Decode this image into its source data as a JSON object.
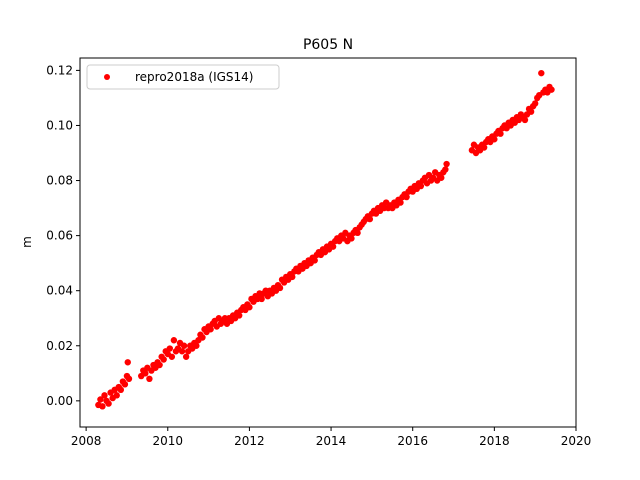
{
  "chart_data": {
    "type": "scatter",
    "title": "P605 N",
    "xlabel": "",
    "ylabel": "m",
    "xlim": [
      2007.85,
      2020.0
    ],
    "ylim": [
      -0.0095,
      0.1245
    ],
    "xticks": [
      2008,
      2010,
      2012,
      2014,
      2016,
      2018,
      2020
    ],
    "xtick_labels": [
      "2008",
      "2010",
      "2012",
      "2014",
      "2016",
      "2018",
      "2020"
    ],
    "yticks": [
      0.0,
      0.02,
      0.04,
      0.06,
      0.08,
      0.1,
      0.12
    ],
    "ytick_labels": [
      "0.00",
      "0.02",
      "0.04",
      "0.06",
      "0.08",
      "0.10",
      "0.12"
    ],
    "grid": false,
    "legend_position": "top-left",
    "series": [
      {
        "name": "repro2018a (IGS14)",
        "color": "#ff0000",
        "marker": "circle",
        "points": [
          [
            2008.3,
            -0.0015
          ],
          [
            2008.35,
            0.0005
          ],
          [
            2008.4,
            -0.002
          ],
          [
            2008.45,
            0.002
          ],
          [
            2008.5,
            0.0
          ],
          [
            2008.55,
            -0.001
          ],
          [
            2008.6,
            0.003
          ],
          [
            2008.65,
            0.001
          ],
          [
            2008.7,
            0.004
          ],
          [
            2008.75,
            0.002
          ],
          [
            2008.8,
            0.005
          ],
          [
            2008.85,
            0.004
          ],
          [
            2008.9,
            0.007
          ],
          [
            2008.95,
            0.006
          ],
          [
            2009.0,
            0.009
          ],
          [
            2009.02,
            0.014
          ],
          [
            2009.05,
            0.008
          ],
          [
            2009.35,
            0.009
          ],
          [
            2009.4,
            0.011
          ],
          [
            2009.45,
            0.01
          ],
          [
            2009.5,
            0.012
          ],
          [
            2009.55,
            0.008
          ],
          [
            2009.6,
            0.011
          ],
          [
            2009.65,
            0.013
          ],
          [
            2009.7,
            0.012
          ],
          [
            2009.75,
            0.014
          ],
          [
            2009.8,
            0.013
          ],
          [
            2009.85,
            0.016
          ],
          [
            2009.9,
            0.015
          ],
          [
            2009.95,
            0.018
          ],
          [
            2010.0,
            0.017
          ],
          [
            2010.05,
            0.019
          ],
          [
            2010.1,
            0.016
          ],
          [
            2010.15,
            0.022
          ],
          [
            2010.2,
            0.018
          ],
          [
            2010.25,
            0.019
          ],
          [
            2010.3,
            0.021
          ],
          [
            2010.35,
            0.018
          ],
          [
            2010.4,
            0.02
          ],
          [
            2010.45,
            0.016
          ],
          [
            2010.5,
            0.018
          ],
          [
            2010.55,
            0.02
          ],
          [
            2010.6,
            0.019
          ],
          [
            2010.65,
            0.021
          ],
          [
            2010.7,
            0.02
          ],
          [
            2010.75,
            0.022
          ],
          [
            2010.8,
            0.024
          ],
          [
            2010.85,
            0.023
          ],
          [
            2010.9,
            0.026
          ],
          [
            2010.95,
            0.025
          ],
          [
            2011.0,
            0.027
          ],
          [
            2011.05,
            0.026
          ],
          [
            2011.1,
            0.028
          ],
          [
            2011.15,
            0.029
          ],
          [
            2011.2,
            0.027
          ],
          [
            2011.25,
            0.03
          ],
          [
            2011.3,
            0.028
          ],
          [
            2011.35,
            0.029
          ],
          [
            2011.4,
            0.03
          ],
          [
            2011.45,
            0.028
          ],
          [
            2011.5,
            0.03
          ],
          [
            2011.55,
            0.029
          ],
          [
            2011.6,
            0.031
          ],
          [
            2011.65,
            0.03
          ],
          [
            2011.7,
            0.032
          ],
          [
            2011.75,
            0.031
          ],
          [
            2011.8,
            0.033
          ],
          [
            2011.85,
            0.034
          ],
          [
            2011.9,
            0.033
          ],
          [
            2011.95,
            0.035
          ],
          [
            2012.0,
            0.034
          ],
          [
            2012.05,
            0.037
          ],
          [
            2012.1,
            0.036
          ],
          [
            2012.15,
            0.038
          ],
          [
            2012.2,
            0.037
          ],
          [
            2012.25,
            0.039
          ],
          [
            2012.3,
            0.037
          ],
          [
            2012.35,
            0.039
          ],
          [
            2012.4,
            0.04
          ],
          [
            2012.45,
            0.038
          ],
          [
            2012.5,
            0.04
          ],
          [
            2012.55,
            0.039
          ],
          [
            2012.6,
            0.041
          ],
          [
            2012.65,
            0.04
          ],
          [
            2012.7,
            0.042
          ],
          [
            2012.75,
            0.041
          ],
          [
            2012.8,
            0.044
          ],
          [
            2012.85,
            0.043
          ],
          [
            2012.9,
            0.045
          ],
          [
            2012.95,
            0.044
          ],
          [
            2013.0,
            0.046
          ],
          [
            2013.05,
            0.045
          ],
          [
            2013.1,
            0.047
          ],
          [
            2013.15,
            0.048
          ],
          [
            2013.2,
            0.047
          ],
          [
            2013.25,
            0.049
          ],
          [
            2013.3,
            0.048
          ],
          [
            2013.35,
            0.05
          ],
          [
            2013.4,
            0.049
          ],
          [
            2013.45,
            0.051
          ],
          [
            2013.5,
            0.05
          ],
          [
            2013.55,
            0.052
          ],
          [
            2013.6,
            0.051
          ],
          [
            2013.65,
            0.053
          ],
          [
            2013.7,
            0.054
          ],
          [
            2013.75,
            0.053
          ],
          [
            2013.8,
            0.055
          ],
          [
            2013.85,
            0.054
          ],
          [
            2013.9,
            0.056
          ],
          [
            2013.95,
            0.055
          ],
          [
            2014.0,
            0.057
          ],
          [
            2014.05,
            0.056
          ],
          [
            2014.1,
            0.058
          ],
          [
            2014.15,
            0.059
          ],
          [
            2014.2,
            0.058
          ],
          [
            2014.25,
            0.06
          ],
          [
            2014.3,
            0.059
          ],
          [
            2014.35,
            0.061
          ],
          [
            2014.4,
            0.058
          ],
          [
            2014.45,
            0.06
          ],
          [
            2014.5,
            0.059
          ],
          [
            2014.55,
            0.061
          ],
          [
            2014.6,
            0.062
          ],
          [
            2014.65,
            0.061
          ],
          [
            2014.7,
            0.063
          ],
          [
            2014.75,
            0.064
          ],
          [
            2014.8,
            0.065
          ],
          [
            2014.85,
            0.066
          ],
          [
            2014.9,
            0.067
          ],
          [
            2014.95,
            0.066
          ],
          [
            2015.0,
            0.068
          ],
          [
            2015.05,
            0.069
          ],
          [
            2015.1,
            0.068
          ],
          [
            2015.15,
            0.07
          ],
          [
            2015.2,
            0.069
          ],
          [
            2015.25,
            0.071
          ],
          [
            2015.3,
            0.07
          ],
          [
            2015.35,
            0.072
          ],
          [
            2015.4,
            0.07
          ],
          [
            2015.45,
            0.071
          ],
          [
            2015.5,
            0.07
          ],
          [
            2015.55,
            0.072
          ],
          [
            2015.6,
            0.071
          ],
          [
            2015.65,
            0.073
          ],
          [
            2015.7,
            0.072
          ],
          [
            2015.75,
            0.074
          ],
          [
            2015.8,
            0.075
          ],
          [
            2015.85,
            0.074
          ],
          [
            2015.9,
            0.076
          ],
          [
            2015.95,
            0.077
          ],
          [
            2016.0,
            0.076
          ],
          [
            2016.05,
            0.078
          ],
          [
            2016.1,
            0.077
          ],
          [
            2016.15,
            0.079
          ],
          [
            2016.2,
            0.078
          ],
          [
            2016.25,
            0.08
          ],
          [
            2016.3,
            0.081
          ],
          [
            2016.35,
            0.079
          ],
          [
            2016.4,
            0.082
          ],
          [
            2016.45,
            0.08
          ],
          [
            2016.5,
            0.081
          ],
          [
            2016.55,
            0.083
          ],
          [
            2016.6,
            0.08
          ],
          [
            2016.65,
            0.082
          ],
          [
            2016.7,
            0.081
          ],
          [
            2016.75,
            0.083
          ],
          [
            2016.8,
            0.084
          ],
          [
            2016.83,
            0.086
          ],
          [
            2017.45,
            0.091
          ],
          [
            2017.5,
            0.093
          ],
          [
            2017.55,
            0.09
          ],
          [
            2017.6,
            0.092
          ],
          [
            2017.65,
            0.091
          ],
          [
            2017.7,
            0.093
          ],
          [
            2017.75,
            0.092
          ],
          [
            2017.8,
            0.094
          ],
          [
            2017.85,
            0.095
          ],
          [
            2017.9,
            0.094
          ],
          [
            2017.95,
            0.096
          ],
          [
            2018.0,
            0.095
          ],
          [
            2018.05,
            0.097
          ],
          [
            2018.1,
            0.098
          ],
          [
            2018.15,
            0.097
          ],
          [
            2018.2,
            0.099
          ],
          [
            2018.25,
            0.1
          ],
          [
            2018.3,
            0.099
          ],
          [
            2018.35,
            0.101
          ],
          [
            2018.4,
            0.1
          ],
          [
            2018.45,
            0.102
          ],
          [
            2018.5,
            0.101
          ],
          [
            2018.55,
            0.103
          ],
          [
            2018.6,
            0.102
          ],
          [
            2018.65,
            0.104
          ],
          [
            2018.7,
            0.103
          ],
          [
            2018.75,
            0.102
          ],
          [
            2018.8,
            0.104
          ],
          [
            2018.85,
            0.106
          ],
          [
            2018.9,
            0.105
          ],
          [
            2018.95,
            0.107
          ],
          [
            2019.0,
            0.108
          ],
          [
            2019.05,
            0.11
          ],
          [
            2019.1,
            0.111
          ],
          [
            2019.15,
            0.119
          ],
          [
            2019.2,
            0.112
          ],
          [
            2019.25,
            0.113
          ],
          [
            2019.3,
            0.112
          ],
          [
            2019.35,
            0.114
          ],
          [
            2019.4,
            0.113
          ]
        ]
      }
    ]
  }
}
